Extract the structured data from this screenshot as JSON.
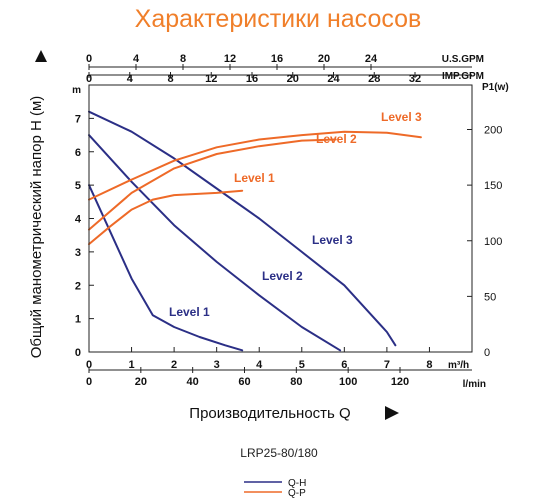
{
  "chart_data": {
    "type": "line",
    "title": "Характеристики насосов",
    "ylabel": "Общий манометрический напор Н (м)",
    "xlabel": "Производительность Q",
    "model": "LRP25-80/180",
    "colors": {
      "title": "#F07F2A",
      "qh": "#2B2F86",
      "qp": "#EE6A28",
      "axis": "#222222",
      "grid": "#555555"
    },
    "axes": {
      "flow_m3h": {
        "unit": "m³/h",
        "range": [
          0,
          9
        ],
        "ticks": [
          "0",
          "1",
          "2",
          "3",
          "4",
          "5",
          "6",
          "7",
          "8"
        ]
      },
      "flow_lmin": {
        "unit": "l/min",
        "ticks": [
          "0",
          "20",
          "40",
          "60",
          "80",
          "100",
          "120"
        ]
      },
      "flow_usgpm": {
        "unit": "U.S.GPM",
        "ticks": [
          "0",
          "4",
          "8",
          "12",
          "16",
          "20",
          "24"
        ]
      },
      "flow_impgpm": {
        "unit": "IMP.GPM",
        "ticks": [
          "0",
          "4",
          "8",
          "12",
          "16",
          "20",
          "24",
          "28",
          "32"
        ]
      },
      "head_m": {
        "unit": "m",
        "range": [
          0,
          8
        ],
        "ticks": [
          "0",
          "1",
          "2",
          "3",
          "4",
          "5",
          "6",
          "7"
        ]
      },
      "power_w": {
        "unit": "P1(w)",
        "range": [
          0,
          240
        ],
        "ticks": [
          "0",
          "50",
          "100",
          "150",
          "200"
        ]
      }
    },
    "qh_series": [
      {
        "name": "Level 1",
        "x": [
          0,
          0.5,
          1.0,
          1.5,
          2.0,
          2.6,
          3.2,
          3.6
        ],
        "y": [
          5.0,
          3.6,
          2.2,
          1.1,
          0.75,
          0.45,
          0.2,
          0.05
        ]
      },
      {
        "name": "Level 2",
        "x": [
          0,
          1.0,
          2.0,
          3.0,
          4.0,
          5.0,
          5.9
        ],
        "y": [
          6.5,
          5.1,
          3.8,
          2.7,
          1.7,
          0.75,
          0.05
        ]
      },
      {
        "name": "Level 3",
        "x": [
          0,
          1.0,
          2.0,
          3.0,
          4.0,
          5.0,
          6.0,
          7.0,
          7.2
        ],
        "y": [
          7.2,
          6.6,
          5.8,
          4.9,
          4.0,
          3.0,
          2.0,
          0.6,
          0.2
        ]
      }
    ],
    "qp_series": [
      {
        "name": "Level 1",
        "x": [
          0,
          0.5,
          1.0,
          1.5,
          2.0,
          3.0,
          3.6
        ],
        "y": [
          97,
          113,
          128,
          137,
          141,
          143,
          145
        ]
      },
      {
        "name": "Level 2",
        "x": [
          0,
          1.0,
          2.0,
          3.0,
          4.0,
          5.0,
          5.8
        ],
        "y": [
          110,
          143,
          165,
          178,
          185,
          190,
          191
        ]
      },
      {
        "name": "Level 3",
        "x": [
          0,
          1.0,
          2.0,
          3.0,
          4.0,
          5.0,
          6.0,
          7.0,
          7.8
        ],
        "y": [
          137,
          155,
          172,
          184,
          191,
          195,
          198,
          197,
          193
        ]
      }
    ],
    "legend": [
      {
        "name": "Q-H",
        "series": "qh"
      },
      {
        "name": "Q-P",
        "series": "qp"
      }
    ]
  }
}
